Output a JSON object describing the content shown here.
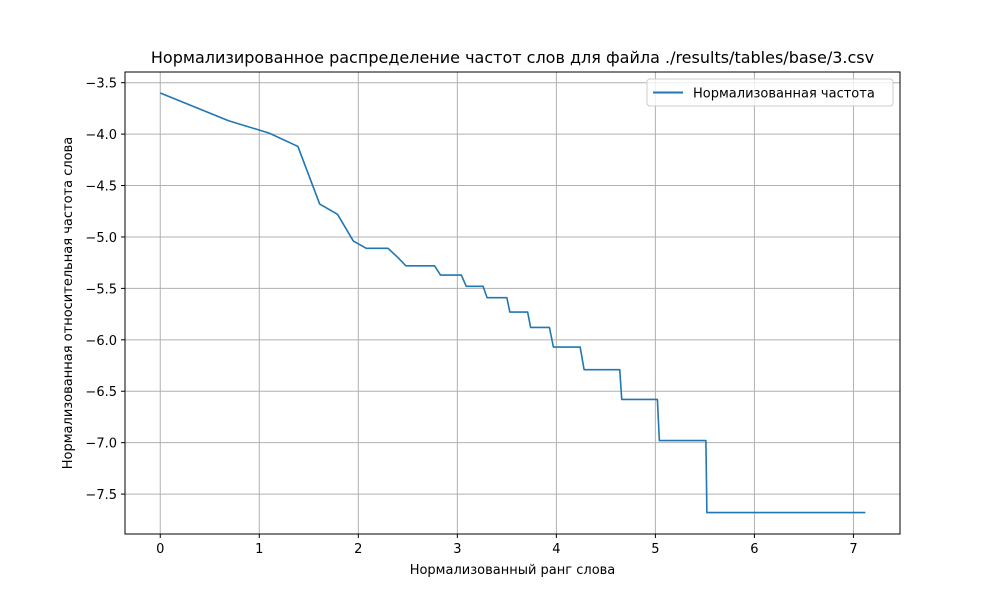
{
  "chart_data": {
    "type": "line",
    "title": "Нормализированное распределение частот слов для файла ./results/tables/base/3.csv",
    "xlabel": "Нормализованный ранг слова",
    "ylabel": "Нормализованная относительная частота слова",
    "xlim": [
      -0.356,
      7.47
    ],
    "ylim": [
      -7.888,
      -3.396
    ],
    "xticks": [
      0,
      1,
      2,
      3,
      4,
      5,
      6,
      7
    ],
    "xtick_labels": [
      "0",
      "1",
      "2",
      "3",
      "4",
      "5",
      "6",
      "7"
    ],
    "yticks": [
      -3.5,
      -4.0,
      -4.5,
      -5.0,
      -5.5,
      -6.0,
      -6.5,
      -7.0,
      -7.5
    ],
    "ytick_labels": [
      "−3.5",
      "−4.0",
      "−4.5",
      "−5.0",
      "−5.5",
      "−6.0",
      "−6.5",
      "−7.0",
      "−7.5"
    ],
    "grid": true,
    "legend_position": "upper right",
    "series": [
      {
        "name": "Нормализованная частота",
        "color": "#1f77b4",
        "x": [
          0,
          0.69,
          1.1,
          1.39,
          1.61,
          1.79,
          1.95,
          2.08,
          2.3,
          2.4,
          2.48,
          2.77,
          2.83,
          3.04,
          3.09,
          3.26,
          3.3,
          3.5,
          3.53,
          3.71,
          3.74,
          3.93,
          3.97,
          4.24,
          4.28,
          4.64,
          4.66,
          5.02,
          5.04,
          5.51,
          5.52,
          7.12
        ],
        "y": [
          -3.6,
          -3.87,
          -3.99,
          -4.12,
          -4.68,
          -4.78,
          -5.04,
          -5.11,
          -5.11,
          -5.2,
          -5.28,
          -5.28,
          -5.37,
          -5.37,
          -5.48,
          -5.48,
          -5.59,
          -5.59,
          -5.73,
          -5.73,
          -5.88,
          -5.88,
          -6.07,
          -6.07,
          -6.29,
          -6.29,
          -6.58,
          -6.58,
          -6.98,
          -6.98,
          -7.68,
          -7.68
        ]
      }
    ]
  }
}
